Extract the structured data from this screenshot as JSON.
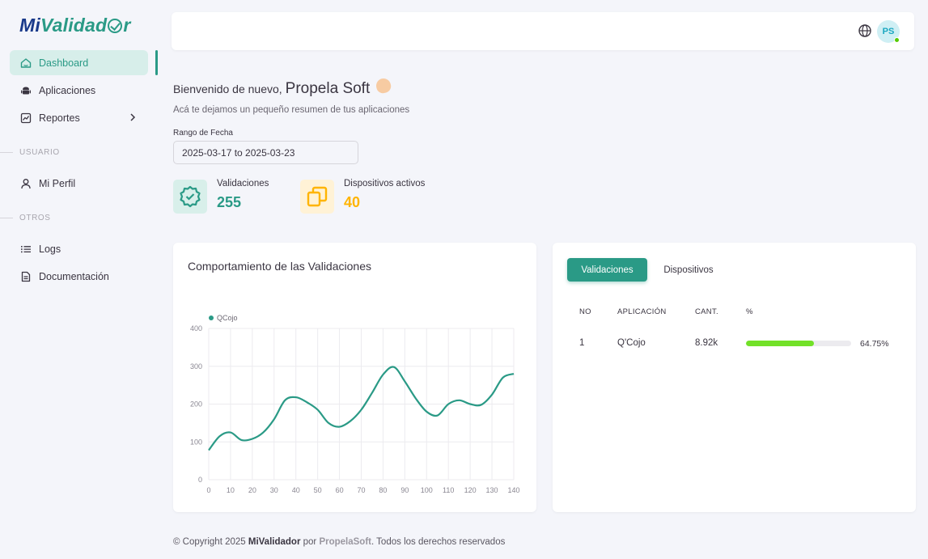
{
  "sidebar": {
    "logo": {
      "part1": "Mi",
      "part2": "Validad",
      "part3": "r"
    },
    "items": [
      {
        "label": "Dashboard"
      },
      {
        "label": "Aplicaciones"
      },
      {
        "label": "Reportes"
      },
      {
        "label": "Mi Perfil"
      },
      {
        "label": "Logs"
      },
      {
        "label": "Documentación"
      }
    ],
    "sections": {
      "user": "USUARIO",
      "others": "OTROS"
    }
  },
  "header": {
    "avatar_initials": "PS"
  },
  "welcome": {
    "greeting": "Bienvenido de nuevo,",
    "name": "Propela Soft",
    "subtitle": "Acá te dejamos un pequeño resumen de tus aplicaciones"
  },
  "date_range": {
    "label": "Rango de Fecha",
    "value": "2025-03-17 to 2025-03-23"
  },
  "stats": [
    {
      "title": "Validaciones",
      "value": "255",
      "color": "#2a9a86"
    },
    {
      "title": "Dispositivos activos",
      "value": "40",
      "color": "#ffb400"
    }
  ],
  "chart_card": {
    "title": "Comportamiento de las Validaciones"
  },
  "chart_data": {
    "type": "line",
    "series": [
      {
        "name": "QCojo",
        "color": "#2a9a86",
        "x": [
          0,
          5,
          10,
          15,
          20,
          25,
          30,
          35,
          40,
          45,
          50,
          55,
          60,
          65,
          70,
          75,
          80,
          85,
          90,
          95,
          100,
          105,
          110,
          115,
          120,
          125,
          130,
          135,
          140
        ],
        "y": [
          78,
          115,
          125,
          105,
          108,
          125,
          160,
          210,
          218,
          205,
          185,
          150,
          140,
          155,
          185,
          230,
          278,
          298,
          260,
          215,
          180,
          170,
          200,
          210,
          200,
          198,
          225,
          270,
          280
        ]
      }
    ],
    "xlim": [
      0,
      140
    ],
    "ylim": [
      0,
      400
    ],
    "xticks": [
      "0",
      "10",
      "20",
      "30",
      "40",
      "50",
      "60",
      "70",
      "80",
      "90",
      "100",
      "110",
      "120",
      "130",
      "140"
    ],
    "yticks": [
      "0",
      "100",
      "200",
      "300",
      "400"
    ],
    "grid": true,
    "legend": "top-left"
  },
  "table_card": {
    "tabs": [
      "Validaciones",
      "Dispositivos"
    ],
    "columns": [
      "NO",
      "APLICACIÓN",
      "CANT.",
      "%"
    ],
    "rows": [
      {
        "no": "1",
        "app": "Q'Cojo",
        "qty": "8.92k",
        "pct": "64.75%",
        "pct_value": 64.75
      }
    ]
  },
  "footer": {
    "prefix": "© Copyright 2025",
    "brand": "MiValidador",
    "by": "por",
    "company": "PropelaSoft",
    "suffix": ". Todos los derechos reservados"
  }
}
